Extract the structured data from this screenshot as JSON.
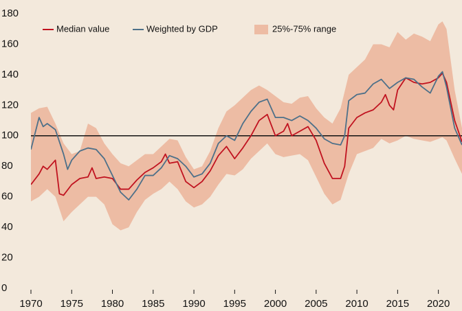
{
  "chart_data": {
    "type": "line",
    "xlim": [
      1970,
      2022.9
    ],
    "ylim": [
      0,
      180
    ],
    "xticks": [
      1970,
      1975,
      1980,
      1985,
      1990,
      1995,
      2000,
      2005,
      2010,
      2015,
      2020
    ],
    "yticks": [
      0,
      20,
      40,
      60,
      80,
      100,
      120,
      140,
      160,
      180
    ],
    "grid": false,
    "reference_line": 100,
    "legend": "top-left",
    "band": {
      "name": "25%-75% range",
      "color": "#edbca4",
      "x": [
        1970,
        1971,
        1972,
        1973,
        1974,
        1975,
        1976,
        1977,
        1978,
        1979,
        1980,
        1981,
        1982,
        1983,
        1984,
        1985,
        1986,
        1987,
        1988,
        1989,
        1990,
        1991,
        1992,
        1993,
        1994,
        1995,
        1996,
        1997,
        1998,
        1999,
        2000,
        2001,
        2002,
        2003,
        2004,
        2005,
        2006,
        2007,
        2008,
        2009,
        2010,
        2011,
        2012,
        2013,
        2014,
        2015,
        2016,
        2017,
        2018,
        2019,
        2020,
        2020.5,
        2021,
        2022,
        2022.9
      ],
      "lower": [
        57,
        60,
        65,
        60,
        44,
        50,
        55,
        60,
        60,
        55,
        42,
        38,
        40,
        50,
        58,
        62,
        65,
        70,
        65,
        57,
        53,
        55,
        60,
        68,
        75,
        74,
        78,
        85,
        90,
        95,
        88,
        86,
        87,
        88,
        84,
        73,
        62,
        55,
        58,
        75,
        88,
        90,
        92,
        98,
        95,
        97,
        100,
        98,
        97,
        96,
        98,
        99,
        97,
        85,
        75
      ],
      "upper": [
        115,
        118,
        119,
        108,
        95,
        88,
        90,
        108,
        105,
        95,
        88,
        82,
        80,
        84,
        88,
        88,
        93,
        98,
        97,
        86,
        78,
        80,
        90,
        105,
        116,
        120,
        125,
        130,
        133,
        130,
        126,
        122,
        121,
        125,
        126,
        118,
        112,
        108,
        118,
        140,
        145,
        150,
        160,
        160,
        158,
        168,
        163,
        167,
        165,
        162,
        173,
        175,
        170,
        130,
        105
      ]
    },
    "series": [
      {
        "name": "Median value",
        "color": "#c0121f",
        "x": [
          1970,
          1971,
          1971.5,
          1972,
          1973,
          1973.5,
          1974,
          1975,
          1976,
          1977,
          1977.5,
          1978,
          1979,
          1980,
          1981,
          1982,
          1983,
          1984,
          1985,
          1986,
          1986.5,
          1987,
          1988,
          1989,
          1990,
          1991,
          1992,
          1993,
          1994,
          1995,
          1996,
          1997,
          1998,
          1999,
          2000,
          2001,
          2001.5,
          2002,
          2003,
          2004,
          2005,
          2006,
          2007,
          2008,
          2008.5,
          2009,
          2010,
          2011,
          2012,
          2013,
          2013.5,
          2014,
          2014.5,
          2015,
          2016,
          2017,
          2018,
          2019,
          2020,
          2020.5,
          2021,
          2022,
          2022.9
        ],
        "values": [
          68,
          75,
          80,
          78,
          84,
          62,
          61,
          68,
          72,
          73,
          79,
          72,
          73,
          72,
          65,
          65,
          71,
          76,
          79,
          83,
          88,
          82,
          83,
          70,
          66,
          70,
          77,
          87,
          93,
          85,
          92,
          100,
          110,
          114,
          100,
          103,
          108,
          100,
          103,
          106,
          97,
          82,
          72,
          72,
          80,
          105,
          112,
          115,
          117,
          122,
          127,
          120,
          117,
          130,
          138,
          135,
          134,
          135,
          138,
          141,
          135,
          110,
          96
        ]
      },
      {
        "name": "Weighted by GDP",
        "color": "#4d7089",
        "x": [
          1970,
          1971,
          1971.5,
          1972,
          1973,
          1974,
          1974.5,
          1975,
          1976,
          1977,
          1978,
          1979,
          1980,
          1981,
          1982,
          1983,
          1984,
          1985,
          1986,
          1987,
          1988,
          1989,
          1990,
          1991,
          1992,
          1993,
          1994,
          1995,
          1996,
          1997,
          1998,
          1999,
          2000,
          2001,
          2002,
          2003,
          2004,
          2005,
          2006,
          2007,
          2008,
          2008.5,
          2009,
          2010,
          2011,
          2012,
          2013,
          2014,
          2015,
          2016,
          2017,
          2018,
          2019,
          2020,
          2020.5,
          2021,
          2022,
          2022.9
        ],
        "values": [
          91,
          112,
          106,
          108,
          104,
          88,
          78,
          84,
          90,
          92,
          91,
          85,
          74,
          63,
          58,
          65,
          74,
          74,
          79,
          87,
          85,
          80,
          73,
          75,
          82,
          95,
          100,
          97,
          108,
          116,
          122,
          124,
          112,
          112,
          110,
          113,
          110,
          105,
          98,
          95,
          94,
          100,
          123,
          127,
          128,
          134,
          137,
          131,
          135,
          138,
          137,
          132,
          128,
          139,
          142,
          132,
          105,
          94
        ]
      }
    ]
  }
}
